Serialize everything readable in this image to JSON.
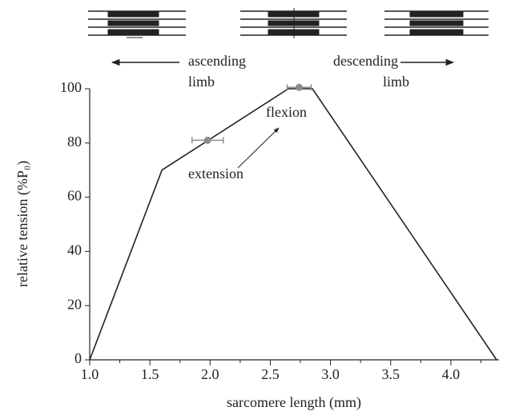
{
  "chart_data": {
    "type": "line",
    "x_label": "sarcomere length (mm)",
    "y_label": "relative tension (%P₀)",
    "x": [
      1.0,
      1.6,
      2.65,
      2.85,
      4.38
    ],
    "series": [
      {
        "color": "#222222",
        "values": [
          0,
          70,
          100,
          100,
          0
        ]
      }
    ],
    "points": {
      "color": "#8c8c8c",
      "x": [
        1.98,
        2.74
      ],
      "y": [
        81,
        100.5
      ],
      "xerr": [
        0.13,
        0.1
      ]
    },
    "xlim": [
      1.0,
      4.4
    ],
    "ylim": [
      0,
      100
    ],
    "xticks": [
      {
        "value": 1.0,
        "label": "1.0"
      },
      {
        "value": 1.5,
        "label": "1.5"
      },
      {
        "value": 2.0,
        "label": "2.0"
      },
      {
        "value": 2.5,
        "label": "2.5"
      },
      {
        "value": 3.0,
        "label": "3.0"
      },
      {
        "value": 3.5,
        "label": "3.5"
      },
      {
        "value": 4.0,
        "label": "4.0"
      }
    ],
    "xminorticks": [
      1.25,
      1.75,
      2.25,
      2.75,
      3.25,
      3.75,
      4.25
    ],
    "yticks": [
      0,
      20,
      40,
      60,
      80,
      100
    ],
    "annotations": [
      {
        "lines": [
          "ascending",
          "limb"
        ]
      },
      {
        "lines": [
          "descending",
          "limb"
        ]
      },
      {
        "lines": [
          "flexion"
        ]
      },
      {
        "lines": [
          "extension"
        ]
      }
    ]
  }
}
